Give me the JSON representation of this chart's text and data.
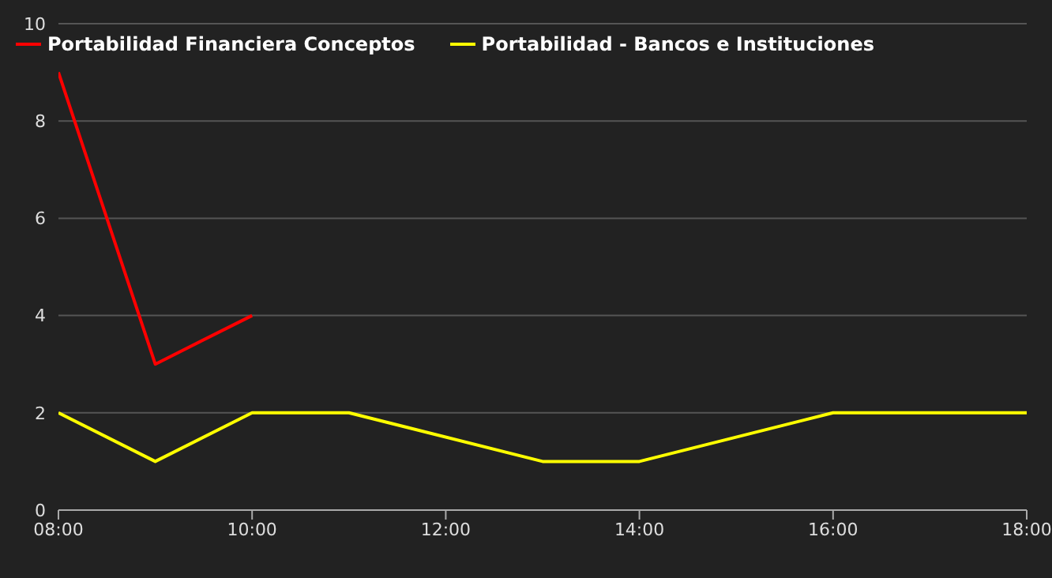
{
  "chart_data": {
    "type": "line",
    "xlim": [
      8,
      18
    ],
    "xticks": [
      {
        "value": 8,
        "label": "08:00"
      },
      {
        "value": 10,
        "label": "10:00"
      },
      {
        "value": 12,
        "label": "12:00"
      },
      {
        "value": 14,
        "label": "14:00"
      },
      {
        "value": 16,
        "label": "16:00"
      },
      {
        "value": 18,
        "label": "18:00"
      }
    ],
    "ylim": [
      0,
      10
    ],
    "yticks": [
      0,
      2,
      4,
      6,
      8,
      10
    ],
    "grid": "y",
    "legend": "top left",
    "marker": "none",
    "series": [
      {
        "name": "Portabilidad Financiera Conceptos",
        "color": "#ff0000",
        "x": [
          8,
          9,
          10
        ],
        "values": [
          9,
          3,
          4
        ]
      },
      {
        "name": "Portabilidad - Bancos e Instituciones",
        "color": "#ffff00",
        "x": [
          8,
          9,
          10,
          11,
          13,
          14,
          16,
          18
        ],
        "values": [
          2,
          1,
          2,
          2,
          1,
          1,
          2,
          2
        ]
      }
    ]
  }
}
